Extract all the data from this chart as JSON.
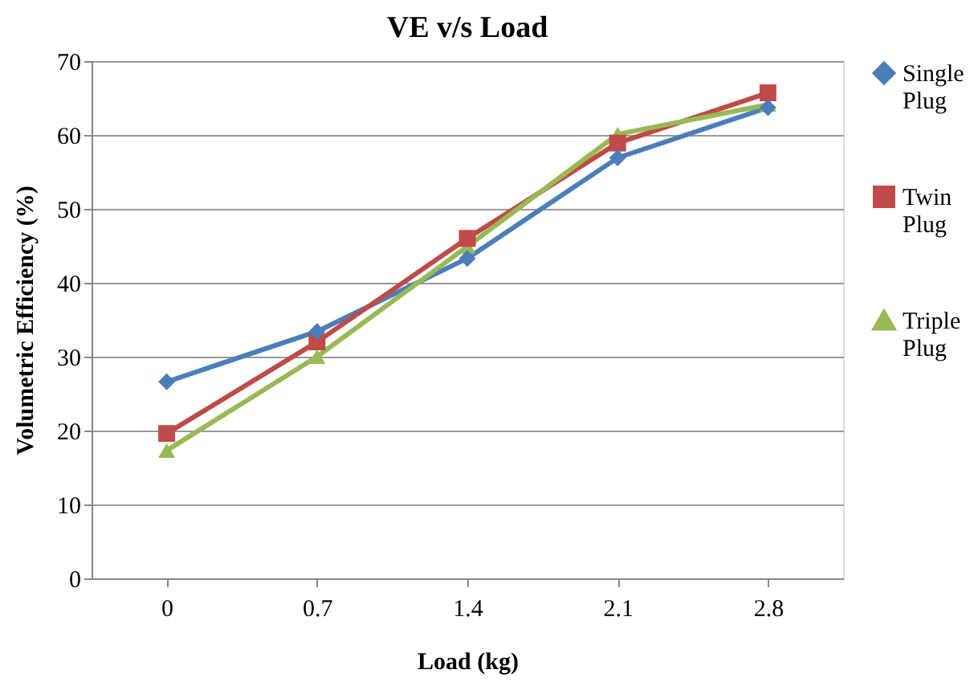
{
  "chart_data": {
    "type": "line",
    "title": "VE v/s Load",
    "xlabel": "Load (kg)",
    "ylabel": "Volumetric Efficiency (%)",
    "categories": [
      "0",
      "0.7",
      "1.4",
      "2.1",
      "2.8"
    ],
    "series": [
      {
        "name": "Single Plug",
        "color": "#4a7ebb",
        "marker": "diamond",
        "values": [
          26.6,
          33.4,
          43.3,
          56.9,
          63.7
        ]
      },
      {
        "name": "Twin Plug",
        "color": "#be4b48",
        "marker": "square",
        "values": [
          19.6,
          32.0,
          46.0,
          58.9,
          65.7
        ]
      },
      {
        "name": "Triple Plug",
        "color": "#98b954",
        "marker": "triangle",
        "values": [
          17.3,
          30.0,
          44.9,
          60.1,
          64.1
        ]
      }
    ],
    "ylim": [
      0,
      70
    ],
    "yticks": [
      0,
      10,
      20,
      30,
      40,
      50,
      60,
      70
    ],
    "grid": "y",
    "legend": "right",
    "line_style": "solid"
  }
}
